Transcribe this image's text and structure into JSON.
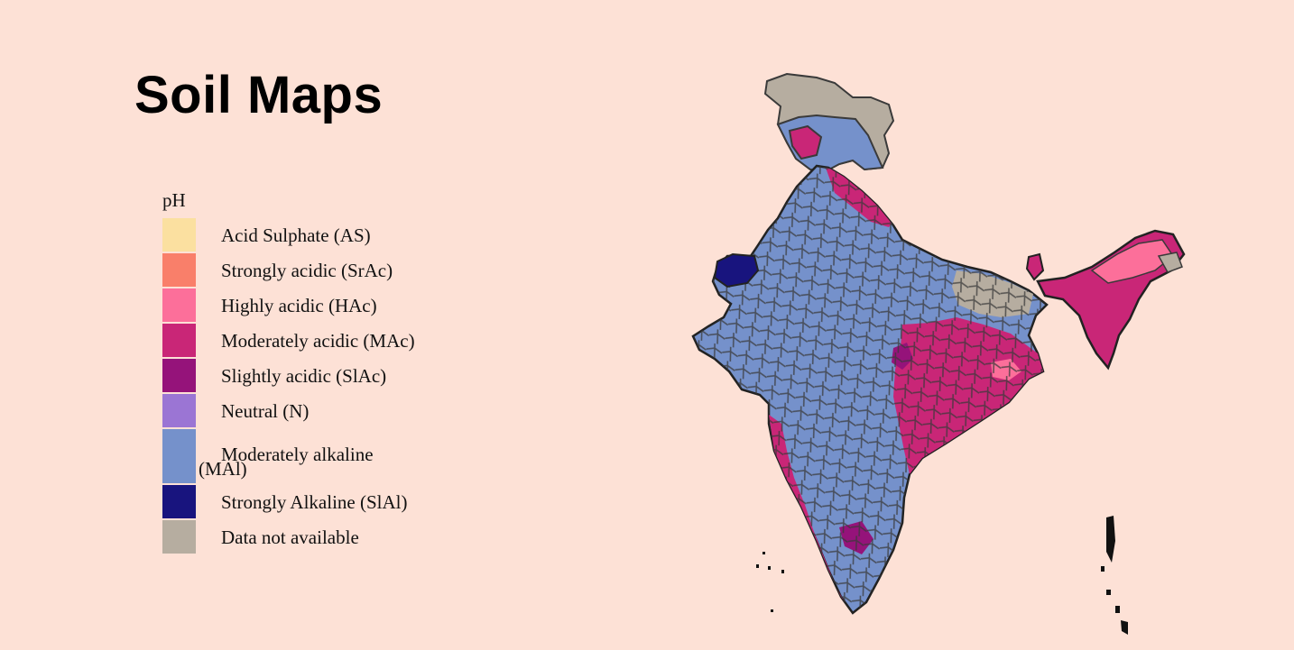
{
  "title": "Soil Maps",
  "legend": {
    "title": "pH",
    "items": [
      {
        "label": "Acid Sulphate (AS)",
        "color": "#fbe0a0"
      },
      {
        "label": "Strongly acidic (SrAc)",
        "color": "#f97f6a"
      },
      {
        "label": "Highly acidic (HAc)",
        "color": "#fc6f9a"
      },
      {
        "label": "Moderately acidic (MAc)",
        "color": "#c92677"
      },
      {
        "label": "Slightly acidic (SlAc)",
        "color": "#95137a"
      },
      {
        "label": "Neutral (N)",
        "color": "#9b75d4"
      },
      {
        "label_line1": "Moderately alkaline",
        "label_line2": "(MAl)",
        "color": "#7591cb"
      },
      {
        "label": "Strongly Alkaline (SlAl)",
        "color": "#18147e"
      },
      {
        "label": "Data not available",
        "color": "#b6ada0"
      }
    ]
  },
  "map": {
    "region": "India",
    "colors": {
      "alkaline": "#7591cb",
      "strong_alkaline": "#18147e",
      "moderate_acid": "#c92677",
      "slight_acid": "#95137a",
      "high_acid": "#fc6f9a",
      "no_data": "#b6ada0",
      "border": "#3a3a3a"
    }
  }
}
